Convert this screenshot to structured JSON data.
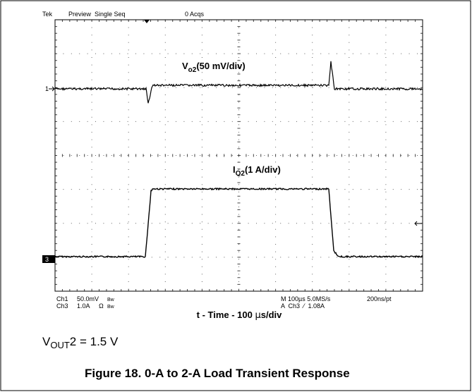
{
  "scope": {
    "header": {
      "brand": "Tek",
      "mode": "Preview  Single Seq",
      "acqs": "0 Acqs"
    },
    "markers": {
      "ch1": "1",
      "ch3": "3"
    },
    "trace_labels": {
      "vo2": {
        "main": "V",
        "sub": "o2",
        "rest": "(50 mV/div)"
      },
      "io2": {
        "main": "I",
        "sub": "O2",
        "rest": "(1 A/div)"
      }
    },
    "settings": {
      "ch1": {
        "name": "Ch1",
        "scale": "50.0mV",
        "bw": "Bw"
      },
      "ch3": {
        "name": "Ch3",
        "scale": "1.0A",
        "ohm": "Ω",
        "bw": "Bw"
      },
      "timebase": "M 100µs 5.0MS/s",
      "resolution": "200ns/pt",
      "trigger": "A  Ch3  ⁄  1.08A"
    }
  },
  "axis_label": {
    "main": "t - Time - 100 ",
    "mu": "µ",
    "rest": "s/div"
  },
  "note": {
    "main": "V",
    "sub": "OUT",
    "rest": "2 = 1.5 V"
  },
  "caption": "Figure 18. 0-A to 2-A Load Transient Response"
}
